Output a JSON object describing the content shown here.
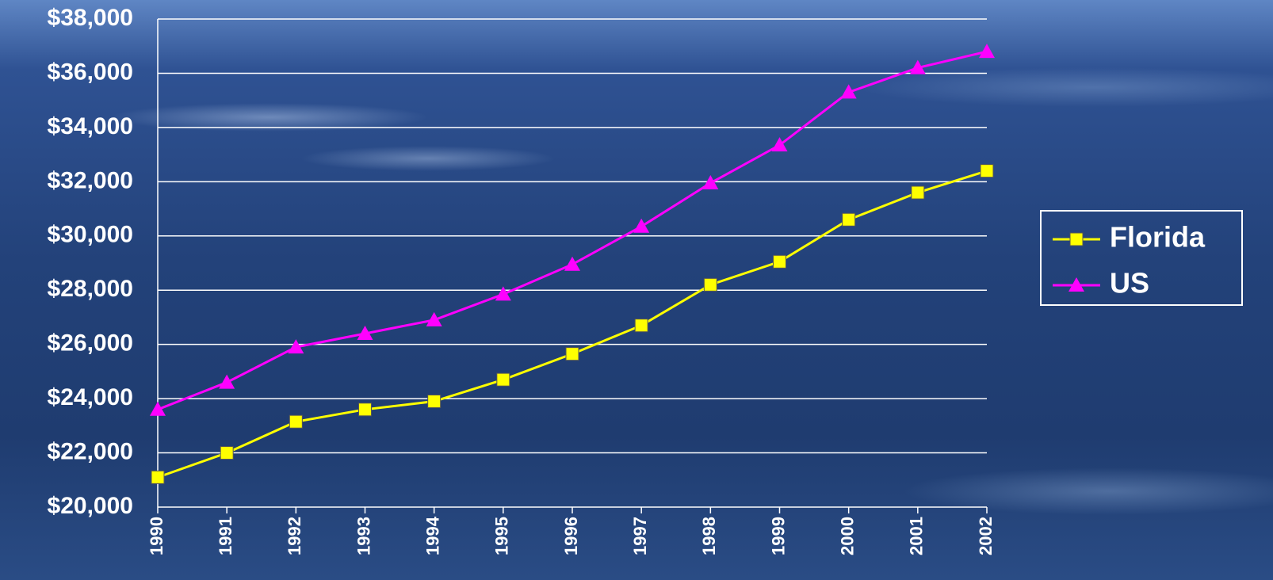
{
  "chart_data": {
    "type": "line",
    "categories": [
      "1990",
      "1991",
      "1992",
      "1993",
      "1994",
      "1995",
      "1996",
      "1997",
      "1998",
      "1999",
      "2000",
      "2001",
      "2002"
    ],
    "series": [
      {
        "name": "Florida",
        "color": "#ffff00",
        "marker": "square",
        "values": [
          21100,
          22000,
          23150,
          23600,
          23900,
          24700,
          25650,
          26700,
          28200,
          29050,
          30600,
          31600,
          32400
        ]
      },
      {
        "name": "US",
        "color": "#ff00ff",
        "marker": "triangle",
        "values": [
          23600,
          24600,
          25900,
          26400,
          26900,
          27850,
          28950,
          30350,
          31950,
          33350,
          35300,
          36200,
          36800
        ]
      }
    ],
    "ylim": [
      20000,
      38000
    ],
    "yticks": [
      {
        "value": 20000,
        "label": "$20,000"
      },
      {
        "value": 22000,
        "label": "$22,000"
      },
      {
        "value": 24000,
        "label": "$24,000"
      },
      {
        "value": 26000,
        "label": "$26,000"
      },
      {
        "value": 28000,
        "label": "$28,000"
      },
      {
        "value": 30000,
        "label": "$30,000"
      },
      {
        "value": 32000,
        "label": "$32,000"
      },
      {
        "value": 34000,
        "label": "$34,000"
      },
      {
        "value": 36000,
        "label": "$36,000"
      },
      {
        "value": 38000,
        "label": "$38,000"
      }
    ],
    "grid": true,
    "legend": "right"
  }
}
